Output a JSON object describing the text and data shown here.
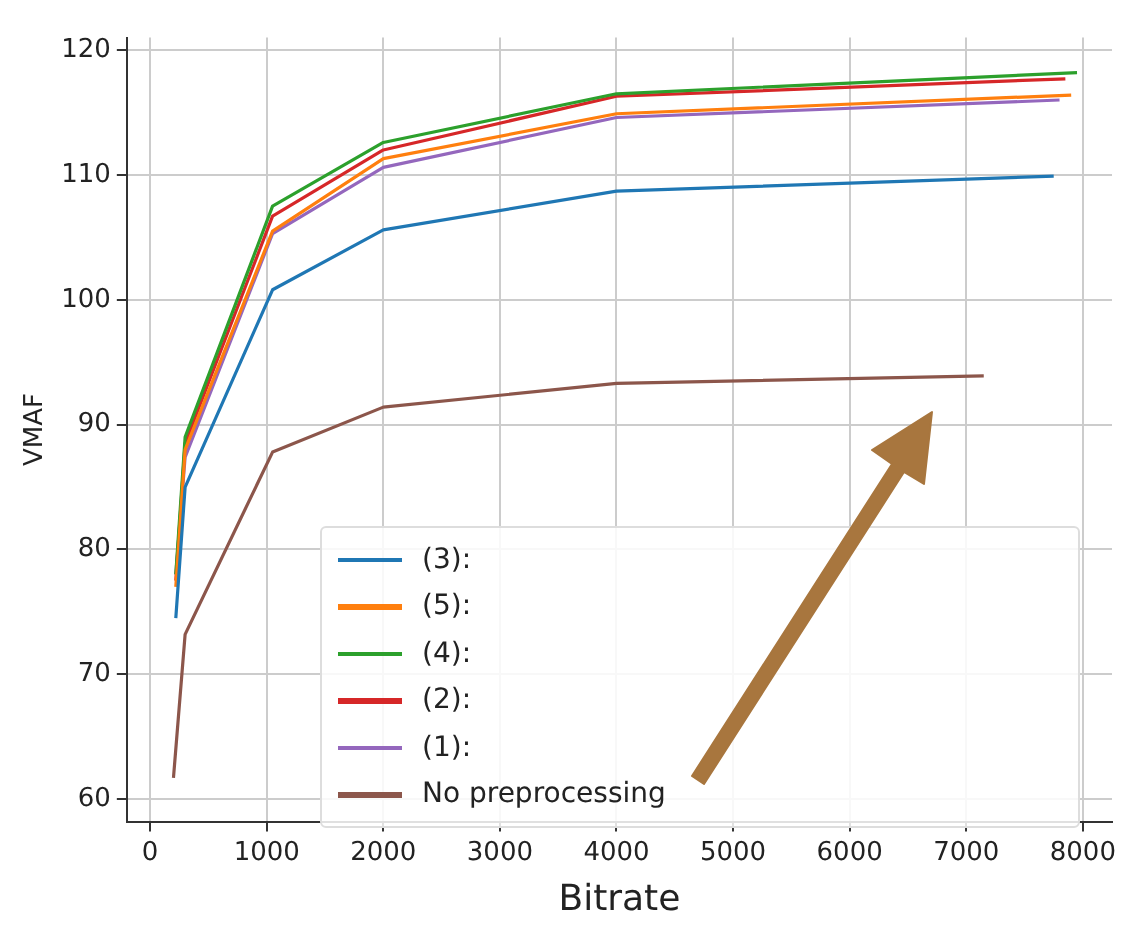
{
  "chart_data": {
    "type": "line",
    "xlabel": "Bitrate",
    "ylabel": "VMAF",
    "xlim": [
      -200,
      8250
    ],
    "ylim": [
      58.2,
      121
    ],
    "xticks": [
      0,
      1000,
      2000,
      3000,
      4000,
      5000,
      6000,
      7000,
      8000
    ],
    "yticks": [
      60,
      70,
      80,
      90,
      100,
      110,
      120
    ],
    "grid": true,
    "legend": "bottom",
    "marker": "none",
    "line_style": "solid",
    "series": [
      {
        "name": "(3):",
        "color": "#1f77b4",
        "x": [
          220,
          300,
          1050,
          2000,
          4000,
          7750
        ],
        "values": [
          74.5,
          85,
          100.8,
          105.6,
          108.7,
          109.9
        ]
      },
      {
        "name": "(5):",
        "color": "#ff7f0e",
        "x": [
          220,
          300,
          1050,
          2000,
          4000,
          7900
        ],
        "values": [
          77,
          88,
          105.5,
          111.3,
          114.9,
          116.4
        ]
      },
      {
        "name": "(4):",
        "color": "#2ca02c",
        "x": [
          220,
          300,
          1050,
          2000,
          4000,
          7950
        ],
        "values": [
          78,
          89,
          107.5,
          112.6,
          116.5,
          118.2
        ]
      },
      {
        "name": "(2):",
        "color": "#d62728",
        "x": [
          220,
          300,
          1050,
          2000,
          4000,
          7850
        ],
        "values": [
          77.5,
          88.5,
          106.7,
          112,
          116.3,
          117.7
        ]
      },
      {
        "name": "(1):",
        "color": "#9467bd",
        "x": [
          220,
          300,
          1050,
          2000,
          4000,
          7800
        ],
        "values": [
          78,
          87.4,
          105.3,
          110.6,
          114.6,
          116
        ]
      },
      {
        "name": "No preprocessing",
        "color": "#8c564b",
        "x": [
          200,
          300,
          1050,
          2000,
          4000,
          7150
        ],
        "values": [
          61.7,
          73.2,
          87.8,
          91.4,
          93.3,
          93.9
        ]
      }
    ]
  }
}
